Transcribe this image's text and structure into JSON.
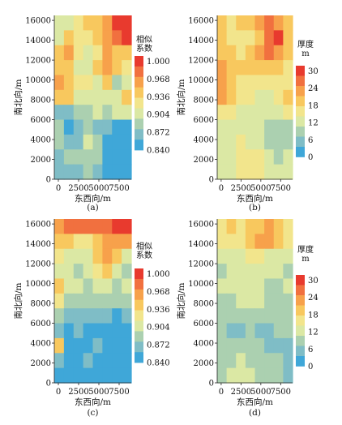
{
  "chart_data": [
    {
      "type": "heatmap",
      "panel_label": "(a)",
      "xlabel": "东西向/m",
      "ylabel": "南北向/m",
      "xticks": [
        0,
        2500,
        5000,
        7500
      ],
      "yticks": [
        0,
        2000,
        4000,
        6000,
        8000,
        10000,
        12000,
        14000,
        16000
      ],
      "xlim": [
        -500,
        9000
      ],
      "ylim": [
        0,
        16500
      ],
      "colorbar": {
        "title": [
          "相似",
          "系数"
        ],
        "ticks": [
          "1.000",
          "0.968",
          "0.936",
          "0.904",
          "0.872",
          "0.840"
        ],
        "colors": [
          "#e83a2e",
          "#f1703f",
          "#f7a14b",
          "#f8c85e",
          "#f2e58c",
          "#dbe8a4",
          "#abd0b0",
          "#7fbdc6",
          "#3fa7d8"
        ]
      },
      "values": [
        [
          0.904,
          0.91,
          0.92,
          0.93,
          0.94,
          0.96,
          0.99,
          1.0
        ],
        [
          0.91,
          0.93,
          0.92,
          0.92,
          0.93,
          0.95,
          0.97,
          0.99
        ],
        [
          0.93,
          0.95,
          0.92,
          0.91,
          0.92,
          0.95,
          0.94,
          0.93
        ],
        [
          0.94,
          0.93,
          0.91,
          0.9,
          0.93,
          0.96,
          0.93,
          0.92
        ],
        [
          0.96,
          0.94,
          0.92,
          0.92,
          0.91,
          0.93,
          0.88,
          0.91
        ],
        [
          0.94,
          0.93,
          0.9,
          0.91,
          0.9,
          0.91,
          0.9,
          0.93
        ],
        [
          0.86,
          0.87,
          0.88,
          0.89,
          0.9,
          0.89,
          0.9,
          0.91
        ],
        [
          0.89,
          0.85,
          0.87,
          0.88,
          0.87,
          0.86,
          0.85,
          0.845
        ],
        [
          0.88,
          0.87,
          0.87,
          0.9,
          0.88,
          0.85,
          0.84,
          0.84
        ],
        [
          0.87,
          0.88,
          0.88,
          0.89,
          0.89,
          0.85,
          0.84,
          0.84
        ],
        [
          0.86,
          0.87,
          0.87,
          0.88,
          0.86,
          0.845,
          0.84,
          0.84
        ]
      ]
    },
    {
      "type": "heatmap",
      "panel_label": "(b)",
      "xlabel": "东西向/m",
      "ylabel": "南北向/m",
      "xticks": [
        0,
        2500,
        5000,
        7500
      ],
      "yticks": [
        0,
        2000,
        4000,
        6000,
        8000,
        10000,
        12000,
        14000,
        16000
      ],
      "xlim": [
        -500,
        9000
      ],
      "ylim": [
        0,
        16500
      ],
      "colorbar": {
        "title": [
          "厚度",
          "m"
        ],
        "ticks": [
          "30",
          "24",
          "18",
          "12",
          "6",
          "0"
        ],
        "colors": [
          "#e83a2e",
          "#f1703f",
          "#f7a14b",
          "#f8c85e",
          "#f2e58c",
          "#dbe8a4",
          "#abd0b0",
          "#7fbdc6",
          "#3fa7d8"
        ]
      },
      "values": [
        [
          18,
          16,
          17,
          19,
          22,
          24,
          22,
          20
        ],
        [
          17,
          15,
          14,
          16,
          20,
          26,
          27,
          18
        ],
        [
          20,
          18,
          16,
          18,
          22,
          26,
          22,
          17
        ],
        [
          21,
          19,
          17,
          18,
          20,
          20,
          17,
          15
        ],
        [
          22,
          20,
          15,
          14,
          16,
          16,
          14,
          15
        ],
        [
          21,
          17,
          14,
          14,
          13,
          12,
          14,
          20
        ],
        [
          16,
          15,
          13,
          13,
          12,
          11,
          12,
          14
        ],
        [
          12,
          13,
          12,
          12,
          11,
          10,
          10,
          9
        ],
        [
          11,
          12,
          14,
          13,
          12,
          10,
          9,
          10
        ],
        [
          11,
          13,
          15,
          16,
          14,
          11,
          10,
          11
        ],
        [
          12,
          13,
          16,
          16,
          14,
          12,
          11,
          12
        ]
      ]
    },
    {
      "type": "heatmap",
      "panel_label": "(c)",
      "xlabel": "东西向/m",
      "ylabel": "南北向/m",
      "xticks": [
        0,
        2500,
        5000,
        7500
      ],
      "yticks": [
        0,
        2000,
        4000,
        6000,
        8000,
        10000,
        12000,
        14000,
        16000
      ],
      "xlim": [
        -500,
        9000
      ],
      "ylim": [
        0,
        16500
      ],
      "colorbar": {
        "title": [
          "相似",
          "系数"
        ],
        "ticks": [
          "1.000",
          "0.968",
          "0.936",
          "0.904",
          "0.872",
          "0.840"
        ],
        "colors": [
          "#e83a2e",
          "#f1703f",
          "#f7a14b",
          "#f8c85e",
          "#f2e58c",
          "#dbe8a4",
          "#abd0b0",
          "#7fbdc6",
          "#3fa7d8"
        ]
      },
      "values": [
        [
          0.96,
          0.975,
          0.98,
          0.98,
          0.975,
          0.97,
          0.99,
          1.0
        ],
        [
          0.94,
          0.93,
          0.92,
          0.92,
          0.93,
          0.95,
          0.955,
          0.95
        ],
        [
          0.92,
          0.91,
          0.9,
          0.91,
          0.93,
          0.95,
          0.93,
          0.91
        ],
        [
          0.91,
          0.9,
          0.89,
          0.9,
          0.92,
          0.94,
          0.91,
          0.89
        ],
        [
          0.94,
          0.91,
          0.9,
          0.89,
          0.9,
          0.91,
          0.89,
          0.9
        ],
        [
          0.92,
          0.89,
          0.88,
          0.89,
          0.88,
          0.88,
          0.88,
          0.89
        ],
        [
          0.88,
          0.87,
          0.87,
          0.87,
          0.86,
          0.86,
          0.85,
          0.86
        ],
        [
          0.86,
          0.85,
          0.86,
          0.85,
          0.85,
          0.845,
          0.84,
          0.84
        ],
        [
          0.93,
          0.85,
          0.845,
          0.85,
          0.86,
          0.845,
          0.84,
          0.84
        ],
        [
          0.86,
          0.85,
          0.85,
          0.86,
          0.855,
          0.845,
          0.84,
          0.84
        ],
        [
          0.85,
          0.85,
          0.845,
          0.85,
          0.85,
          0.845,
          0.84,
          0.84
        ]
      ]
    },
    {
      "type": "heatmap",
      "panel_label": "(d)",
      "xlabel": "东西向/m",
      "ylabel": "南北向/m",
      "xticks": [
        0,
        2500,
        5000,
        7500
      ],
      "yticks": [
        0,
        2000,
        4000,
        6000,
        8000,
        10000,
        12000,
        14000,
        16000
      ],
      "xlim": [
        -500,
        9000
      ],
      "ylim": [
        0,
        16500
      ],
      "colorbar": {
        "title": [
          "厚度",
          "m"
        ],
        "ticks": [
          "30",
          "24",
          "18",
          "12",
          "6",
          "0"
        ],
        "colors": [
          "#e83a2e",
          "#f1703f",
          "#f7a14b",
          "#f8c85e",
          "#f2e58c",
          "#dbe8a4",
          "#abd0b0",
          "#7fbdc6",
          "#3fa7d8"
        ]
      },
      "values": [
        [
          16,
          17,
          16,
          18,
          20,
          21,
          18,
          15
        ],
        [
          15,
          14,
          16,
          20,
          22,
          21,
          17,
          14
        ],
        [
          13,
          12,
          13,
          15,
          14,
          13,
          12,
          11
        ],
        [
          10,
          11,
          12,
          13,
          12,
          11,
          12,
          10
        ],
        [
          11,
          12,
          12,
          11,
          11,
          10,
          10,
          11
        ],
        [
          9,
          10,
          11,
          12,
          11,
          10,
          9,
          8
        ],
        [
          8,
          7,
          8,
          8,
          7,
          8,
          8,
          9
        ],
        [
          7,
          6,
          6,
          7,
          6,
          6,
          7,
          7
        ],
        [
          8,
          8,
          9,
          8,
          7,
          6,
          6,
          6
        ],
        [
          9,
          10,
          11,
          10,
          9,
          7,
          7,
          6
        ],
        [
          10,
          11,
          12,
          11,
          10,
          8,
          7,
          6
        ]
      ]
    }
  ]
}
